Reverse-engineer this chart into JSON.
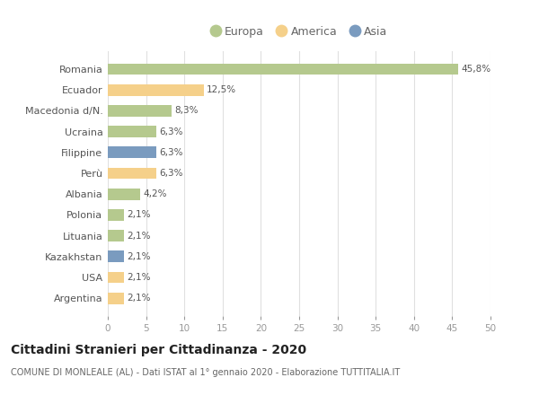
{
  "categories": [
    "Romania",
    "Ecuador",
    "Macedonia d/N.",
    "Ucraina",
    "Filippine",
    "Perù",
    "Albania",
    "Polonia",
    "Lituania",
    "Kazakhstan",
    "USA",
    "Argentina"
  ],
  "values": [
    45.8,
    12.5,
    8.3,
    6.3,
    6.3,
    6.3,
    4.2,
    2.1,
    2.1,
    2.1,
    2.1,
    2.1
  ],
  "labels": [
    "45,8%",
    "12,5%",
    "8,3%",
    "6,3%",
    "6,3%",
    "6,3%",
    "4,2%",
    "2,1%",
    "2,1%",
    "2,1%",
    "2,1%",
    "2,1%"
  ],
  "continents": [
    "Europa",
    "America",
    "Europa",
    "Europa",
    "Asia",
    "America",
    "Europa",
    "Europa",
    "Europa",
    "Asia",
    "America",
    "America"
  ],
  "colors": {
    "Europa": "#b5c98e",
    "America": "#f5d08a",
    "Asia": "#7a9bbf"
  },
  "title": "Cittadini Stranieri per Cittadinanza - 2020",
  "subtitle": "COMUNE DI MONLEALE (AL) - Dati ISTAT al 1° gennaio 2020 - Elaborazione TUTTITALIA.IT",
  "xlim": [
    0,
    50
  ],
  "xticks": [
    0,
    5,
    10,
    15,
    20,
    25,
    30,
    35,
    40,
    45,
    50
  ],
  "background_color": "#ffffff",
  "grid_color": "#e0e0e0",
  "bar_height": 0.55,
  "legend_items": [
    "Europa",
    "America",
    "Asia"
  ],
  "label_color": "#555555",
  "tick_color": "#999999"
}
